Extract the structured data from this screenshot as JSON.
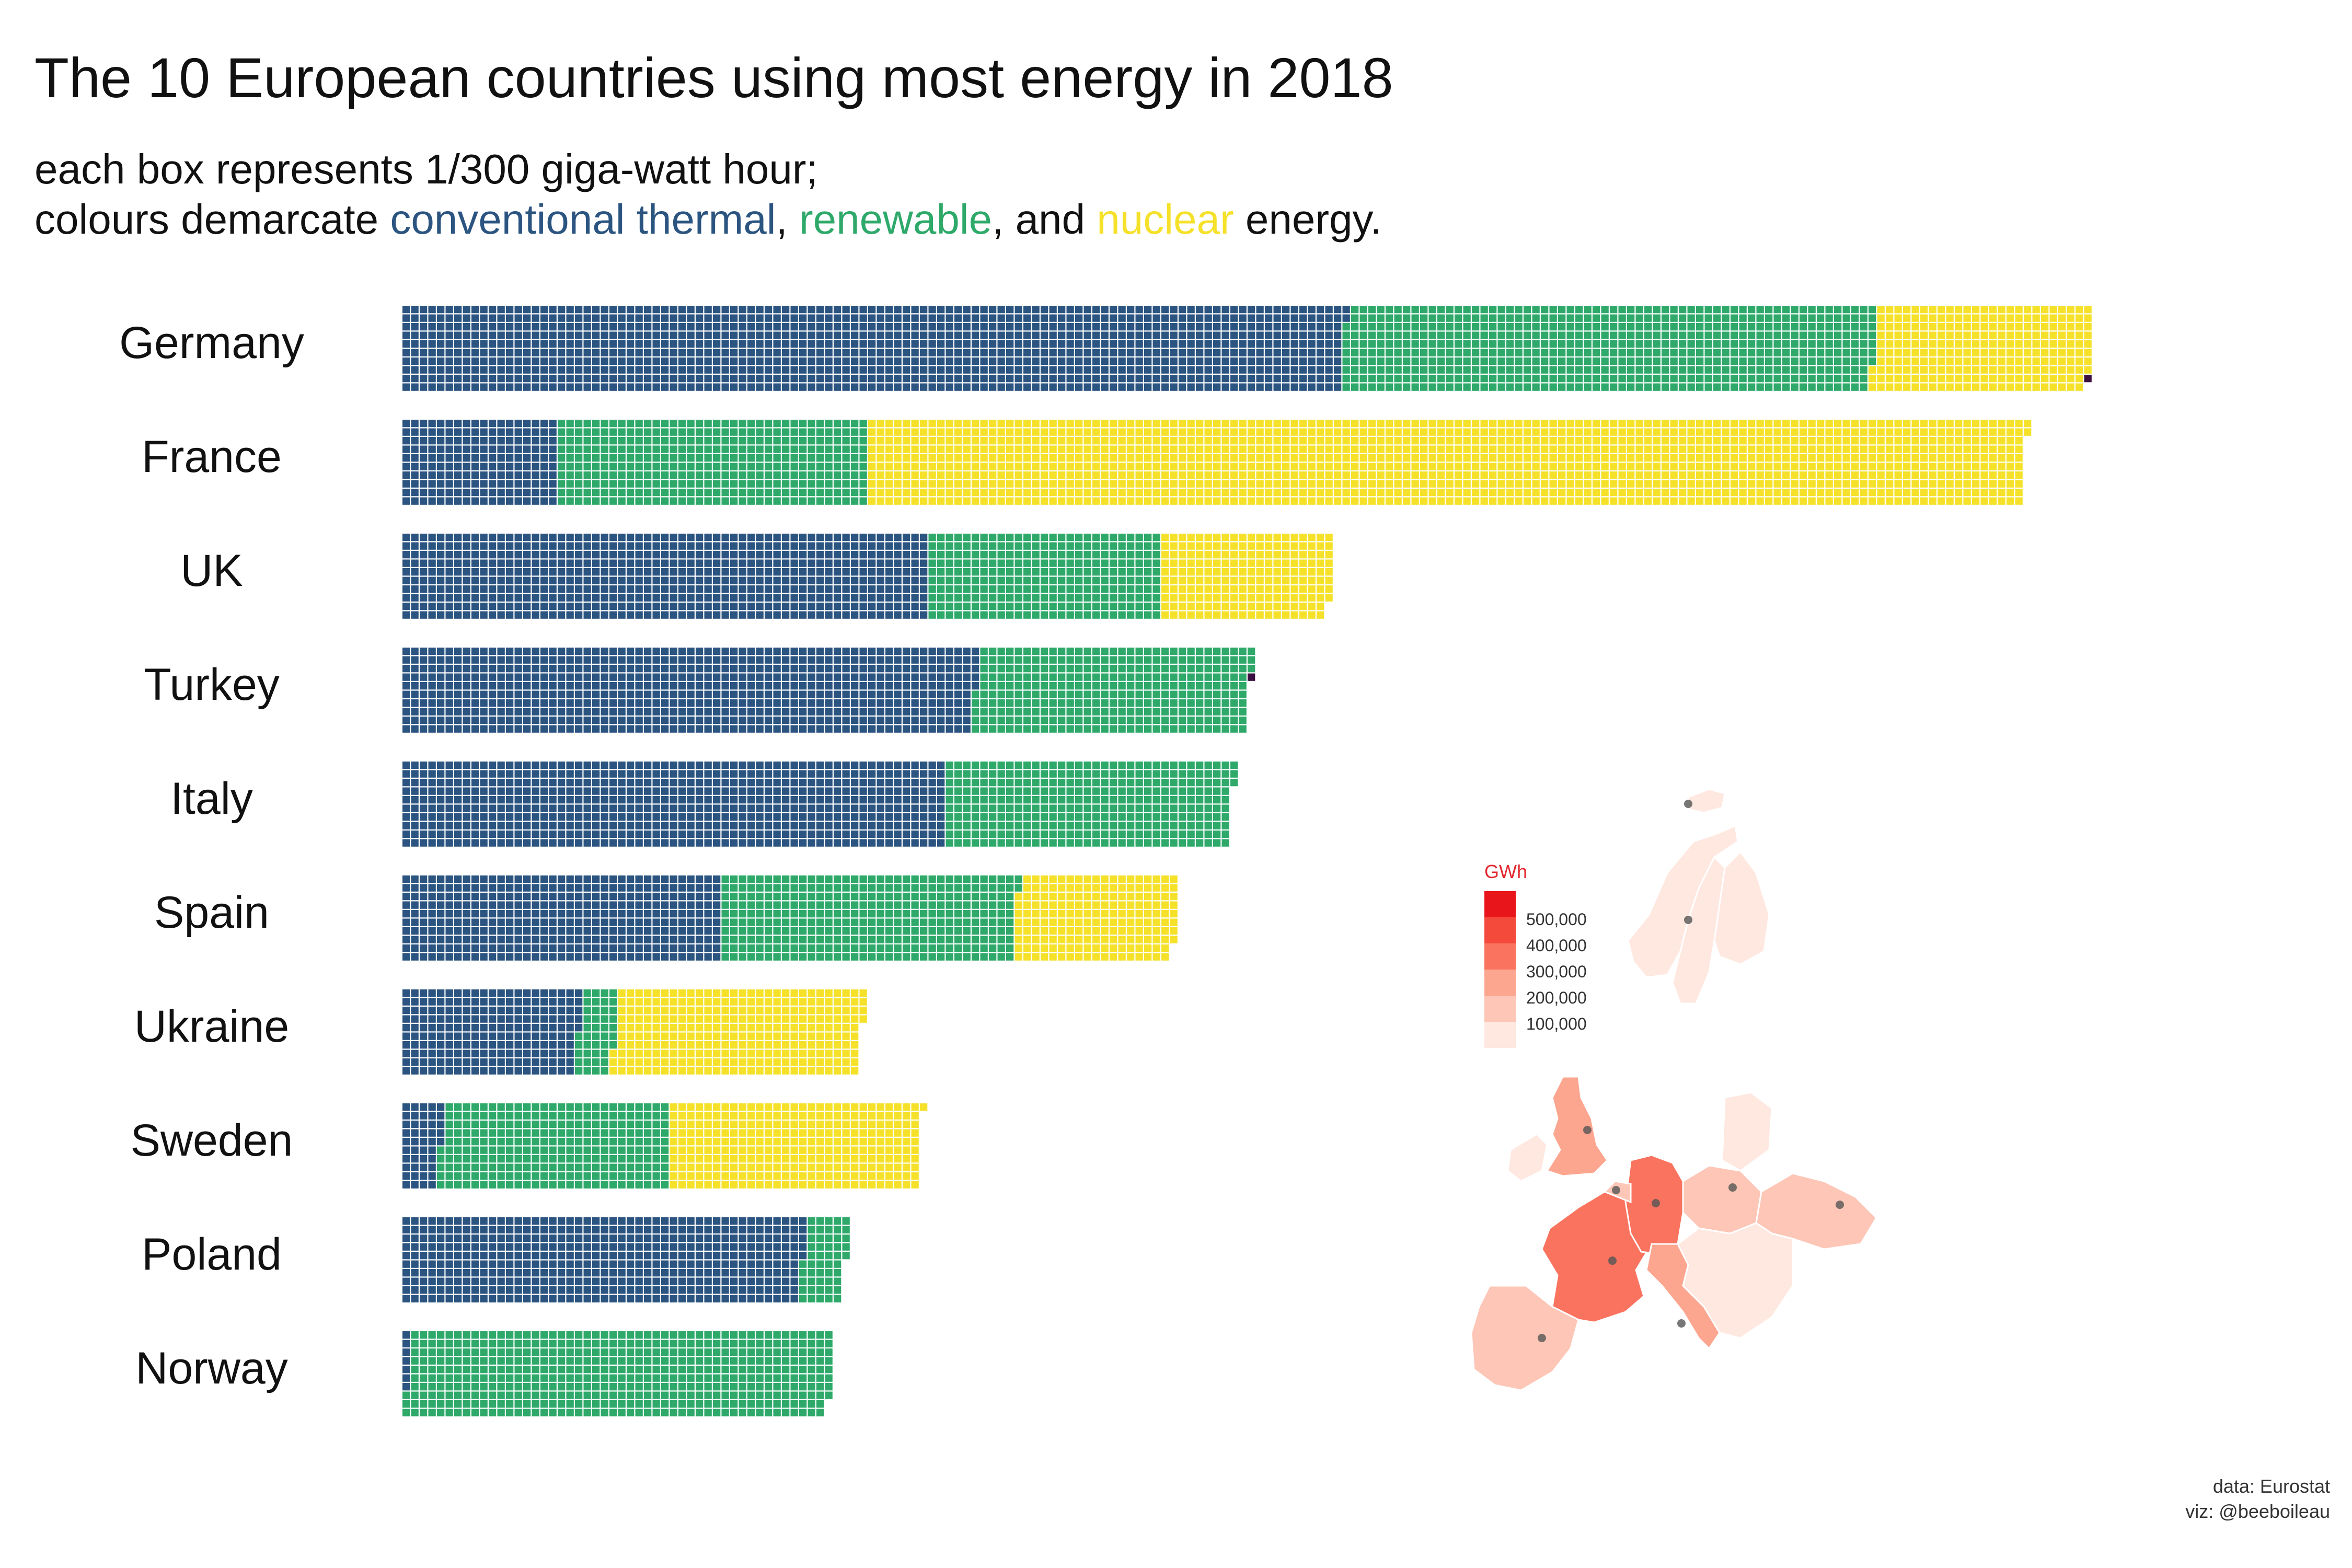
{
  "title": "The 10 European countries using most energy in 2018",
  "subtitle": {
    "line1": "each box represents 1/300 giga-watt hour;",
    "line2_prefix": "colours demarcate ",
    "thermal_word": "conventional thermal",
    "sep1": ", ",
    "renewable_word": "renewable",
    "sep2": ", and ",
    "nuclear_word": "nuclear",
    "line2_suffix": " energy."
  },
  "colors": {
    "thermal": "#2b5480",
    "renewable": "#2ea96a",
    "nuclear": "#f5e12a",
    "other": "#3b0f3f",
    "map_stroke": "#ffffff",
    "legend_title": "#e3262e"
  },
  "chart_data": {
    "type": "waffle",
    "unit_note": "each box represents 1/300 giga-watt hour",
    "categories": [
      "Germany",
      "France",
      "UK",
      "Turkey",
      "Italy",
      "Spain",
      "Ukraine",
      "Sweden",
      "Poland",
      "Norway"
    ],
    "series": [
      {
        "name": "conventional thermal",
        "values": [
          1092,
          180,
          610,
          665,
          630,
          370,
          205,
          45,
          465,
          7
        ]
      },
      {
        "name": "renewable",
        "values": [
          615,
          360,
          270,
          318,
          333,
          342,
          42,
          265,
          50,
          491
        ]
      },
      {
        "name": "nuclear",
        "values": [
          251,
          1342,
          198,
          0,
          0,
          186,
          287,
          291,
          0,
          0
        ]
      },
      {
        "name": "other",
        "values": [
          1,
          0,
          0,
          1,
          0,
          0,
          0,
          0,
          0,
          0
        ]
      }
    ],
    "boxes_per_column": 10
  },
  "map": {
    "legend_title": "GWh",
    "legend_labels": [
      "500,000",
      "400,000",
      "300,000",
      "200,000",
      "100,000"
    ],
    "legend_colors": [
      "#e8161b",
      "#f44a3c",
      "#f9735f",
      "#fca58f",
      "#fdc6b6",
      "#fee8e0"
    ]
  },
  "credits": {
    "data": "data: Eurostat",
    "viz": "viz: @beeboileau"
  }
}
